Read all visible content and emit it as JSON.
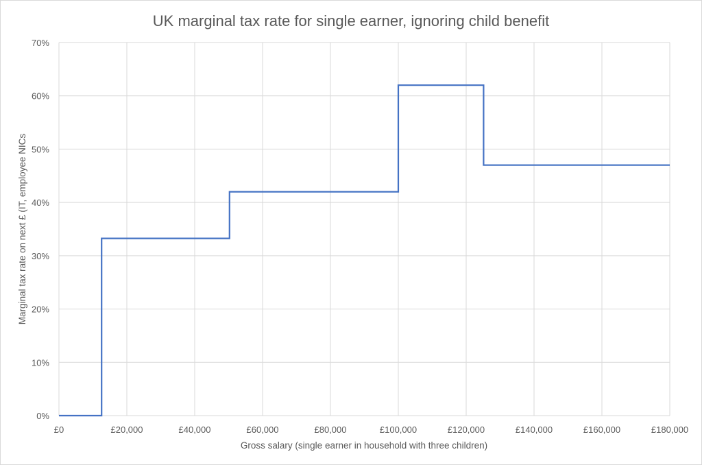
{
  "chart_data": {
    "type": "line",
    "title": "UK marginal tax rate for single earner, ignoring child benefit",
    "xlabel": "Gross salary (single earner in household with three children)",
    "ylabel": "Marginal tax rate on next £ (IT, employee NICs",
    "xlim": [
      0,
      180000
    ],
    "ylim": [
      0,
      0.7
    ],
    "grid": true,
    "x_ticks": [
      0,
      20000,
      40000,
      60000,
      80000,
      100000,
      120000,
      140000,
      160000,
      180000
    ],
    "x_tick_labels": [
      "£0",
      "£20,000",
      "£40,000",
      "£60,000",
      "£80,000",
      "£100,000",
      "£120,000",
      "£140,000",
      "£160,000",
      "£180,000"
    ],
    "y_ticks": [
      0,
      0.1,
      0.2,
      0.3,
      0.4,
      0.5,
      0.6,
      0.7
    ],
    "y_tick_labels": [
      "0%",
      "10%",
      "20%",
      "30%",
      "40%",
      "50%",
      "60%",
      "70%"
    ],
    "series_color": "#4472c4",
    "grid_color": "#d9d9d9",
    "series": [
      {
        "x": [
          0,
          12570,
          12570,
          50270,
          50270,
          100000,
          100000,
          125140,
          125140,
          180000
        ],
        "y": [
          0,
          0,
          0.3325,
          0.3325,
          0.42,
          0.42,
          0.62,
          0.62,
          0.47,
          0.47
        ]
      }
    ]
  }
}
